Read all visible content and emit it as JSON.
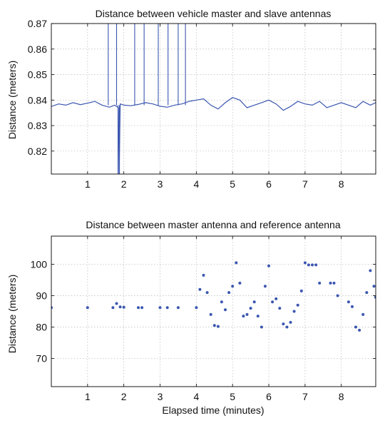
{
  "chart_data": [
    {
      "type": "line",
      "title": "Distance between vehicle master and slave antennas",
      "xlabel": "",
      "ylabel": "Distance (meters)",
      "xlim": [
        0,
        8.95
      ],
      "ylim": [
        0.811,
        0.87
      ],
      "xticks": [
        1,
        2,
        3,
        4,
        5,
        6,
        7,
        8
      ],
      "yticks": [
        0.82,
        0.83,
        0.84,
        0.85,
        0.86,
        0.87
      ],
      "ytick_labels": [
        "0.82",
        "0.83",
        "0.84",
        "0.85",
        "0.86",
        "0.87"
      ],
      "grid": true,
      "color": "#3b56b0",
      "series": [
        {
          "x": [
            0.0,
            0.2,
            0.4,
            0.6,
            0.8,
            1.0,
            1.2,
            1.4,
            1.6,
            1.75,
            1.85,
            1.87,
            1.9,
            2.0,
            2.2,
            2.4,
            2.6,
            2.8,
            3.0,
            3.2,
            3.4,
            3.6,
            3.7,
            3.8,
            4.0,
            4.2,
            4.4,
            4.6,
            4.8,
            5.0,
            5.2,
            5.4,
            5.6,
            5.8,
            6.0,
            6.2,
            6.4,
            6.6,
            6.8,
            7.0,
            7.2,
            7.4,
            7.6,
            7.8,
            8.0,
            8.2,
            8.4,
            8.6,
            8.8,
            8.95
          ],
          "y": [
            0.8375,
            0.8385,
            0.838,
            0.839,
            0.8382,
            0.8388,
            0.8395,
            0.838,
            0.8372,
            0.838,
            0.837,
            0.811,
            0.8385,
            0.838,
            0.8378,
            0.8383,
            0.839,
            0.8385,
            0.8376,
            0.8372,
            0.838,
            0.8385,
            0.839,
            0.8395,
            0.84,
            0.8405,
            0.838,
            0.8365,
            0.839,
            0.841,
            0.84,
            0.837,
            0.838,
            0.839,
            0.84,
            0.8385,
            0.836,
            0.8375,
            0.8395,
            0.8385,
            0.838,
            0.8395,
            0.837,
            0.838,
            0.839,
            0.838,
            0.837,
            0.8395,
            0.838,
            0.839
          ]
        }
      ],
      "spikes": [
        {
          "x": 1.57,
          "y": 0.87
        },
        {
          "x": 1.8,
          "y": 0.87
        },
        {
          "x": 1.84,
          "y": 0.811
        },
        {
          "x": 1.88,
          "y": 0.811
        },
        {
          "x": 2.3,
          "y": 0.87
        },
        {
          "x": 2.56,
          "y": 0.87
        },
        {
          "x": 2.95,
          "y": 0.87
        },
        {
          "x": 3.22,
          "y": 0.87
        },
        {
          "x": 3.5,
          "y": 0.87
        },
        {
          "x": 3.7,
          "y": 0.87
        }
      ]
    },
    {
      "type": "scatter",
      "title": "Distance between master antenna and reference antenna",
      "xlabel": "Elapsed time (minutes)",
      "ylabel": "Distance (meters)",
      "xlim": [
        0,
        8.95
      ],
      "ylim": [
        61,
        109
      ],
      "xticks": [
        1,
        2,
        3,
        4,
        5,
        6,
        7,
        8
      ],
      "yticks": [
        70,
        80,
        90,
        100
      ],
      "ytick_labels": [
        "70",
        "80",
        "90",
        "100"
      ],
      "grid": true,
      "color": "#3b56b0",
      "series": [
        {
          "x": [
            0.0,
            1.0,
            1.7,
            1.8,
            1.9,
            2.0,
            2.4,
            2.5,
            3.0,
            3.2,
            3.5,
            4.0,
            4.1,
            4.2,
            4.3,
            4.4,
            4.5,
            4.6,
            4.7,
            4.8,
            4.9,
            5.0,
            5.1,
            5.2,
            5.3,
            5.4,
            5.5,
            5.6,
            5.7,
            5.8,
            5.9,
            6.0,
            6.1,
            6.2,
            6.3,
            6.4,
            6.5,
            6.6,
            6.7,
            6.8,
            6.9,
            7.0,
            7.1,
            7.2,
            7.3,
            7.4,
            7.7,
            7.8,
            7.9,
            8.2,
            8.3,
            8.4,
            8.5,
            8.6,
            8.7,
            8.8,
            8.9,
            8.95
          ],
          "y": [
            86.2,
            86.2,
            86.2,
            87.5,
            86.4,
            86.3,
            86.2,
            86.2,
            86.2,
            86.2,
            86.2,
            86.2,
            92.0,
            96.5,
            91.0,
            84.0,
            80.5,
            80.2,
            88.0,
            85.5,
            91.0,
            93.0,
            100.5,
            94.0,
            83.5,
            84.0,
            86.0,
            88.0,
            83.5,
            80.0,
            93.0,
            99.5,
            88.0,
            89.0,
            86.0,
            81.0,
            80.0,
            81.5,
            85.0,
            87.0,
            91.5,
            100.5,
            99.8,
            99.8,
            99.8,
            94.0,
            94.0,
            94.0,
            90.0,
            88.0,
            86.5,
            80.0,
            79.0,
            84.0,
            91.0,
            98.0,
            93.0,
            89.5
          ]
        }
      ]
    }
  ]
}
